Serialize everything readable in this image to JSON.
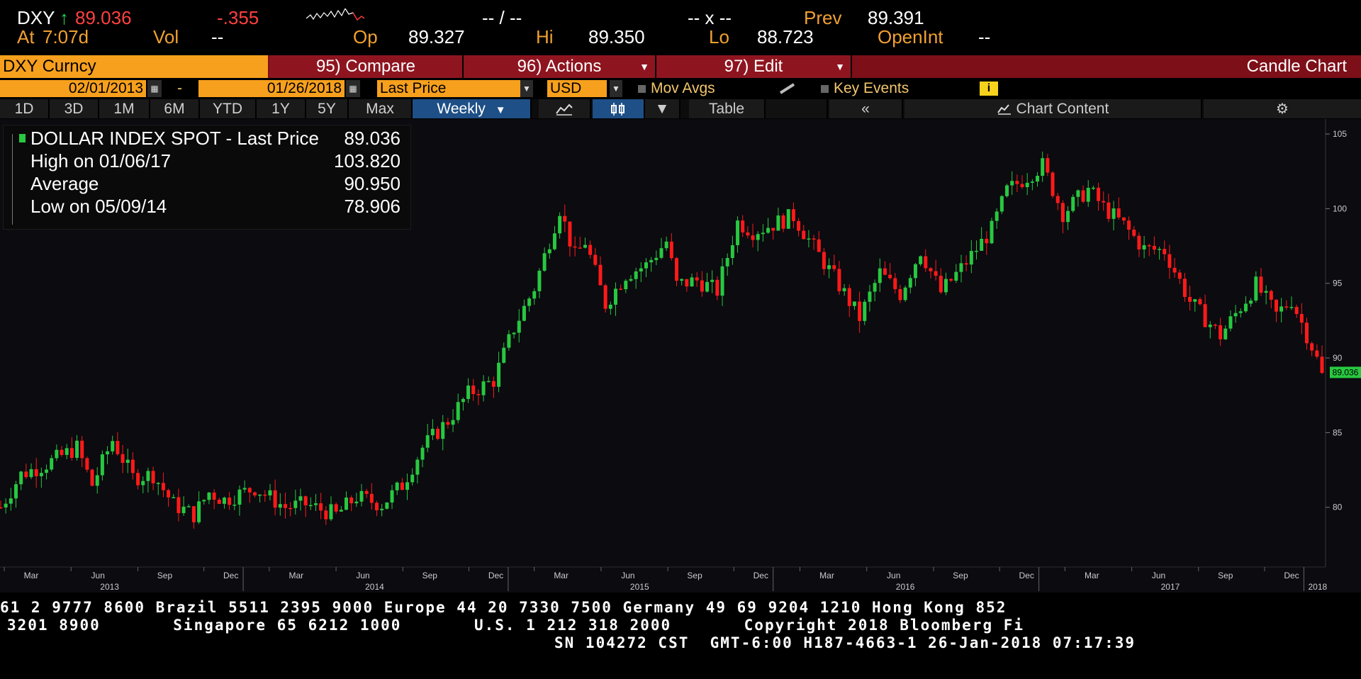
{
  "quote": {
    "ticker": "DXY",
    "arrow": "↑",
    "last": "89.036",
    "change": "-.355",
    "bid_ask": "-- / --",
    "size": "-- x --",
    "prev_label": "Prev",
    "prev_value": "89.391",
    "at_label": "At",
    "time": "7:07d",
    "vol_label": "Vol",
    "vol_value": "--",
    "open_label": "Op",
    "open_value": "89.327",
    "high_label": "Hi",
    "high_value": "89.350",
    "low_label": "Lo",
    "low_value": "88.723",
    "openint_label": "OpenInt",
    "openint_value": "--"
  },
  "toolbar": {
    "security": "DXY Curncy",
    "compare": "95) Compare",
    "actions": "96) Actions",
    "edit": "97) Edit",
    "chart_title": "Candle Chart"
  },
  "controls": {
    "start_date": "02/01/2013",
    "dash": "-",
    "end_date": "01/26/2018",
    "price_field": "Last Price",
    "currency": "USD",
    "mov_avgs": "Mov Avgs",
    "key_events": "Key Events",
    "info": "i"
  },
  "periods": [
    "1D",
    "3D",
    "1M",
    "6M",
    "YTD",
    "1Y",
    "5Y",
    "Max"
  ],
  "frequency": "Weekly",
  "tools": {
    "table": "Table",
    "collapse": "«",
    "chart_content": "Chart Content"
  },
  "legend": {
    "series": "DOLLAR INDEX SPOT - Last Price",
    "series_value": "89.036",
    "high_label": "High on 01/06/17",
    "high_value": "103.820",
    "avg_label": "Average",
    "avg_value": "90.950",
    "low_label": "Low on 05/09/14",
    "low_value": "78.906"
  },
  "colors": {
    "up": "#28c840",
    "down": "#ff1a1a",
    "accent": "#f7a01d",
    "bar": "#8e1520",
    "selected": "#1e4f86",
    "last_tag": "#28c840"
  },
  "chart_data": {
    "type": "candlestick",
    "frequency": "weekly",
    "x_range": [
      "2013-02-01",
      "2018-01-26"
    ],
    "ylim": [
      76,
      106
    ],
    "yticks": [
      80,
      85,
      90,
      95,
      100,
      105
    ],
    "last_price_tag": "89.036",
    "grid": false,
    "month_ticks": [
      "Mar",
      "Jun",
      "Sep",
      "Dec",
      "Mar",
      "Jun",
      "Sep",
      "Dec",
      "Mar",
      "Jun",
      "Sep",
      "Dec",
      "Mar",
      "Jun",
      "Sep",
      "Dec",
      "Mar",
      "Jun",
      "Sep",
      "Dec"
    ],
    "year_labels": [
      "2013",
      "2014",
      "2015",
      "2016",
      "2017",
      "2018"
    ],
    "path_points": [
      [
        "2013-02-01",
        80.0
      ],
      [
        "2013-03-01",
        82.2
      ],
      [
        "2013-04-05",
        82.9
      ],
      [
        "2013-05-17",
        84.0
      ],
      [
        "2013-06-07",
        81.5
      ],
      [
        "2013-07-05",
        84.5
      ],
      [
        "2013-08-02",
        82.0
      ],
      [
        "2013-08-30",
        82.2
      ],
      [
        "2013-09-27",
        80.2
      ],
      [
        "2013-10-25",
        79.5
      ],
      [
        "2013-11-15",
        81.0
      ],
      [
        "2013-12-06",
        80.5
      ],
      [
        "2014-01-17",
        81.3
      ],
      [
        "2014-02-28",
        80.0
      ],
      [
        "2014-03-28",
        80.2
      ],
      [
        "2014-05-09",
        79.5
      ],
      [
        "2014-06-06",
        80.7
      ],
      [
        "2014-07-11",
        80.2
      ],
      [
        "2014-08-08",
        81.5
      ],
      [
        "2014-09-05",
        84.0
      ],
      [
        "2014-10-10",
        85.8
      ],
      [
        "2014-11-07",
        87.6
      ],
      [
        "2014-12-12",
        88.5
      ],
      [
        "2015-01-09",
        92.0
      ],
      [
        "2015-02-06",
        94.7
      ],
      [
        "2015-03-13",
        100.0
      ],
      [
        "2015-04-03",
        96.8
      ],
      [
        "2015-04-17",
        97.8
      ],
      [
        "2015-05-15",
        93.6
      ],
      [
        "2015-06-12",
        95.6
      ],
      [
        "2015-07-10",
        96.2
      ],
      [
        "2015-08-07",
        97.8
      ],
      [
        "2015-08-21",
        94.9
      ],
      [
        "2015-09-18",
        95.2
      ],
      [
        "2015-10-16",
        94.5
      ],
      [
        "2015-11-13",
        99.1
      ],
      [
        "2015-12-04",
        98.5
      ],
      [
        "2015-12-18",
        98.7
      ],
      [
        "2016-01-29",
        99.5
      ],
      [
        "2016-02-26",
        97.4
      ],
      [
        "2016-03-25",
        95.4
      ],
      [
        "2016-04-29",
        92.7
      ],
      [
        "2016-05-27",
        95.7
      ],
      [
        "2016-06-24",
        94.3
      ],
      [
        "2016-07-22",
        97.2
      ],
      [
        "2016-08-19",
        94.4
      ],
      [
        "2016-09-16",
        96.0
      ],
      [
        "2016-10-28",
        98.6
      ],
      [
        "2016-11-18",
        101.2
      ],
      [
        "2017-01-06",
        102.9
      ],
      [
        "2017-02-03",
        99.7
      ],
      [
        "2017-03-10",
        101.3
      ],
      [
        "2017-03-31",
        100.1
      ],
      [
        "2017-04-28",
        98.9
      ],
      [
        "2017-05-26",
        97.3
      ],
      [
        "2017-06-23",
        97.2
      ],
      [
        "2017-07-28",
        93.8
      ],
      [
        "2017-09-08",
        91.5
      ],
      [
        "2017-10-27",
        94.9
      ],
      [
        "2017-11-24",
        92.9
      ],
      [
        "2017-12-15",
        93.9
      ],
      [
        "2018-01-12",
        90.8
      ],
      [
        "2018-01-26",
        89.0
      ]
    ]
  },
  "footer": {
    "line1": "61 2 9777 8600 Brazil 5511 2395 9000 Europe 44 20 7330 7500 Germany 49 69 9204 1210 Hong Kong 852",
    "line2": "3201 8900       Singapore 65 6212 1000       U.S. 1 212 318 2000       Copyright 2018 Bloomberg Fi",
    "line3": "SN 104272 CST  GMT-6:00 H187-4663-1 26-Jan-2018 07:17:39"
  }
}
